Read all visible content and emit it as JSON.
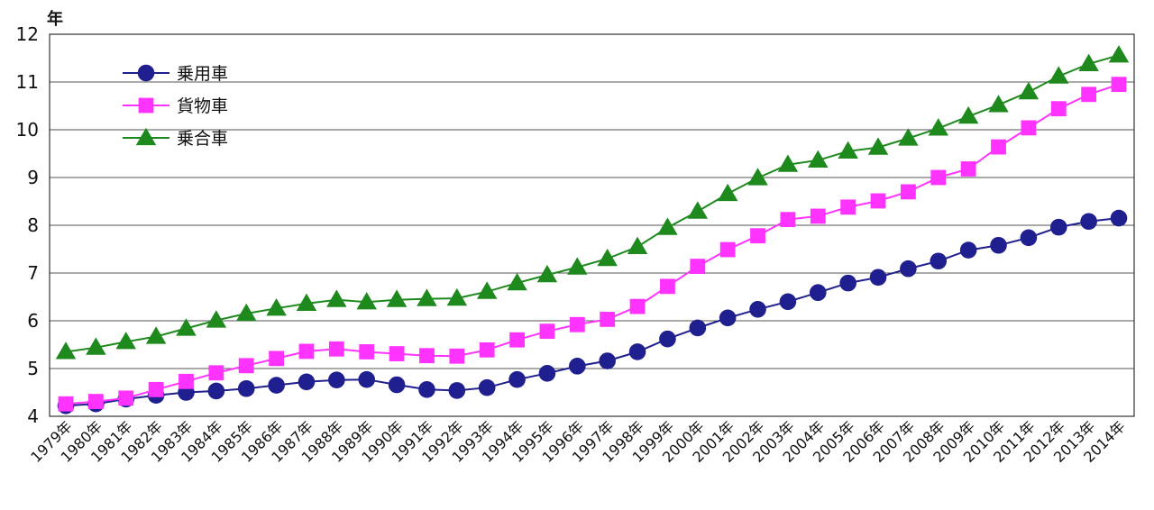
{
  "chart_data": {
    "type": "line",
    "ylabel": "年",
    "ylim": [
      4,
      12
    ],
    "yticks": [
      4,
      5,
      6,
      7,
      8,
      9,
      10,
      11,
      12
    ],
    "grid": true,
    "legend_position": "top-left",
    "categories": [
      "1979年",
      "1980年",
      "1981年",
      "1982年",
      "1983年",
      "1984年",
      "1985年",
      "1986年",
      "1987年",
      "1988年",
      "1989年",
      "1990年",
      "1991年",
      "1992年",
      "1993年",
      "1994年",
      "1995年",
      "1996年",
      "1997年",
      "1998年",
      "1999年",
      "2000年",
      "2001年",
      "2002年",
      "2003年",
      "2004年",
      "2005年",
      "2006年",
      "2007年",
      "2008年",
      "2009年",
      "2010年",
      "2011年",
      "2012年",
      "2013年",
      "2014年"
    ],
    "series": [
      {
        "name": "乗用車",
        "color": "#1f1f8f",
        "marker": "circle",
        "values": [
          4.22,
          4.26,
          4.36,
          4.44,
          4.5,
          4.53,
          4.58,
          4.65,
          4.72,
          4.76,
          4.77,
          4.66,
          4.56,
          4.54,
          4.6,
          4.77,
          4.9,
          5.05,
          5.16,
          5.35,
          5.62,
          5.85,
          6.06,
          6.24,
          6.4,
          6.59,
          6.79,
          6.91,
          7.09,
          7.25,
          7.48,
          7.58,
          7.74,
          7.96,
          8.08,
          8.15
        ]
      },
      {
        "name": "貨物車",
        "color": "#ff33ff",
        "marker": "square",
        "values": [
          4.26,
          4.31,
          4.38,
          4.56,
          4.73,
          4.91,
          5.06,
          5.21,
          5.36,
          5.41,
          5.35,
          5.31,
          5.27,
          5.26,
          5.39,
          5.6,
          5.78,
          5.92,
          6.03,
          6.3,
          6.72,
          7.14,
          7.49,
          7.78,
          8.12,
          8.19,
          8.38,
          8.51,
          8.7,
          9.0,
          9.18,
          9.64,
          10.04,
          10.44,
          10.74,
          10.95
        ]
      },
      {
        "name": "乗合車",
        "color": "#1e8a1e",
        "marker": "triangle",
        "values": [
          5.35,
          5.44,
          5.56,
          5.67,
          5.84,
          6.01,
          6.15,
          6.26,
          6.36,
          6.44,
          6.39,
          6.44,
          6.46,
          6.47,
          6.61,
          6.79,
          6.96,
          7.12,
          7.3,
          7.55,
          7.95,
          8.29,
          8.66,
          8.99,
          9.27,
          9.36,
          9.55,
          9.63,
          9.82,
          10.03,
          10.28,
          10.52,
          10.79,
          11.12,
          11.38,
          11.56
        ]
      }
    ]
  }
}
